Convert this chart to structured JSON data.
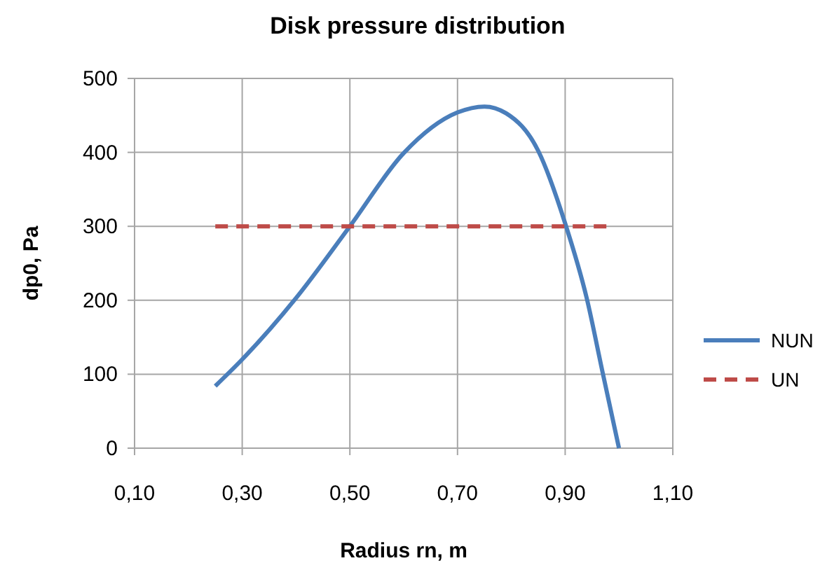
{
  "chart_data": {
    "type": "line",
    "title": "Disk pressure distribution",
    "xlabel": "Radius rn, m",
    "ylabel": "dp0, Pa",
    "xlim": [
      0.1,
      1.1
    ],
    "xticks": [
      {
        "value": 0.1,
        "label": "0,10"
      },
      {
        "value": 0.3,
        "label": "0,30"
      },
      {
        "value": 0.5,
        "label": "0,50"
      },
      {
        "value": 0.7,
        "label": "0,70"
      },
      {
        "value": 0.9,
        "label": "0,90"
      },
      {
        "value": 1.1,
        "label": "1,10"
      }
    ],
    "ylim": [
      0,
      500
    ],
    "yticks": [
      0,
      100,
      200,
      300,
      400,
      500
    ],
    "grid": true,
    "legend": "right",
    "marker": "none",
    "series": [
      {
        "name": "NUN",
        "color": "#4a7ebb",
        "line_style": "solid",
        "x": [
          0.25,
          0.3,
          0.4,
          0.5,
          0.6,
          0.7,
          0.75,
          0.79,
          0.85,
          0.9,
          0.94,
          0.97,
          1.0
        ],
        "values": [
          84,
          120,
          203,
          300,
          399,
          454,
          462,
          453,
          402,
          304,
          203,
          101,
          0
        ]
      },
      {
        "name": "UN",
        "color": "#be4b48",
        "line_style": "dashed",
        "x": [
          0.25,
          0.98
        ],
        "values": [
          300,
          300
        ]
      }
    ]
  }
}
